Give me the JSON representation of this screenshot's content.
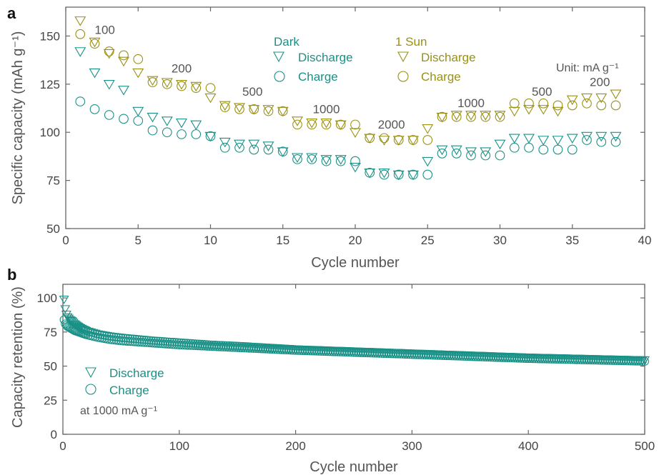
{
  "colors": {
    "dark": "#1a9187",
    "sun": "#9a9112",
    "axis": "#666666",
    "text": "#555555"
  },
  "chart_data": [
    {
      "panel": "a",
      "type": "scatter",
      "xlabel": "Cycle number",
      "ylabel": "Specific capacity (mAh g⁻¹)",
      "xlim": [
        0,
        40
      ],
      "ylim": [
        50,
        165
      ],
      "xticks": [
        0,
        5,
        10,
        15,
        20,
        25,
        30,
        35,
        40
      ],
      "yticks": [
        50,
        75,
        100,
        125,
        150
      ],
      "grid": false,
      "unit_note": "Unit: mA g⁻¹",
      "legend": {
        "groups": [
          {
            "title": "Dark",
            "entries": [
              "Discharge",
              "Charge"
            ]
          },
          {
            "title": "1 Sun",
            "entries": [
              "Discharge",
              "Charge"
            ]
          }
        ]
      },
      "rate_labels": [
        {
          "text": "100",
          "x": 2.7,
          "y": 151
        },
        {
          "text": "200",
          "x": 8.0,
          "y": 131
        },
        {
          "text": "500",
          "x": 12.9,
          "y": 119
        },
        {
          "text": "1000",
          "x": 18.0,
          "y": 110
        },
        {
          "text": "2000",
          "x": 22.5,
          "y": 102
        },
        {
          "text": "1000",
          "x": 28.0,
          "y": 113
        },
        {
          "text": "500",
          "x": 32.9,
          "y": 119
        },
        {
          "text": "200",
          "x": 36.9,
          "y": 124
        }
      ],
      "x": [
        1,
        2,
        3,
        4,
        5,
        6,
        7,
        8,
        9,
        10,
        11,
        12,
        13,
        14,
        15,
        16,
        17,
        18,
        19,
        20,
        21,
        22,
        23,
        24,
        25,
        26,
        27,
        28,
        29,
        30,
        31,
        32,
        33,
        34,
        35,
        36,
        37,
        38
      ],
      "series": [
        {
          "name": "Discharge",
          "group": "1 Sun",
          "marker": "triangle-down",
          "color": "#9a9112",
          "values": [
            158,
            147,
            141,
            137,
            131,
            127,
            126,
            125,
            124,
            118,
            114,
            113,
            112,
            112,
            111,
            106,
            105,
            105,
            104,
            100,
            97,
            96,
            96,
            96,
            102,
            108,
            109,
            109,
            109,
            109,
            111,
            112,
            112,
            111,
            117,
            118,
            118,
            120
          ]
        },
        {
          "name": "Charge",
          "group": "1 Sun",
          "marker": "circle",
          "color": "#9a9112",
          "values": [
            151,
            146,
            142,
            140,
            138,
            126,
            125,
            124,
            123,
            123,
            113,
            112,
            112,
            111,
            111,
            104,
            104,
            104,
            104,
            104,
            97,
            97,
            96,
            96,
            96,
            108,
            108,
            108,
            108,
            108,
            115,
            115,
            115,
            114,
            114,
            115,
            114,
            114
          ]
        },
        {
          "name": "Discharge",
          "group": "Dark",
          "marker": "triangle-down",
          "color": "#1a9187",
          "values": [
            142,
            131,
            125,
            122,
            111,
            108,
            106,
            105,
            104,
            98,
            95,
            94,
            94,
            93,
            90,
            87,
            87,
            86,
            86,
            82,
            79,
            79,
            78,
            78,
            85,
            91,
            91,
            90,
            90,
            94,
            97,
            97,
            96,
            96,
            97,
            98,
            98,
            98
          ]
        },
        {
          "name": "Charge",
          "group": "Dark",
          "marker": "circle",
          "color": "#1a9187",
          "values": [
            116,
            112,
            109,
            107,
            106,
            101,
            100,
            99,
            99,
            98,
            92,
            92,
            91,
            91,
            90,
            86,
            86,
            85,
            85,
            85,
            79,
            78,
            78,
            78,
            78,
            89,
            89,
            88,
            88,
            88,
            92,
            92,
            91,
            91,
            91,
            96,
            95,
            95
          ]
        }
      ]
    },
    {
      "panel": "b",
      "type": "scatter",
      "xlabel": "Cycle number",
      "ylabel": "Capacity retention (%)",
      "xlim": [
        0,
        500
      ],
      "ylim": [
        0,
        110
      ],
      "xticks": [
        0,
        100,
        200,
        300,
        400,
        500
      ],
      "yticks": [
        0,
        25,
        50,
        75,
        100
      ],
      "grid": false,
      "rate_note": "at 1000 mA g⁻¹",
      "legend": {
        "entries": [
          "Discharge",
          "Charge"
        ]
      },
      "series": [
        {
          "name": "Discharge",
          "marker": "triangle-down",
          "color": "#1a9187",
          "points": [
            [
              1,
              99
            ],
            [
              2,
              92
            ],
            [
              3,
              88
            ],
            [
              4,
              86
            ],
            [
              5,
              85
            ],
            [
              6,
              84
            ],
            [
              8,
              83
            ],
            [
              10,
              81
            ],
            [
              15,
              78
            ],
            [
              20,
              76
            ],
            [
              30,
              73.5
            ],
            [
              40,
              72
            ],
            [
              50,
              71
            ],
            [
              75,
              69
            ],
            [
              100,
              67.5
            ],
            [
              125,
              66
            ],
            [
              150,
              65
            ],
            [
              200,
              62.5
            ],
            [
              250,
              61
            ],
            [
              300,
              59.5
            ],
            [
              350,
              58
            ],
            [
              400,
              56.5
            ],
            [
              450,
              55.5
            ],
            [
              500,
              54.5
            ]
          ]
        },
        {
          "name": "Charge",
          "group": "",
          "marker": "circle",
          "color": "#1a9187",
          "points": [
            [
              1,
              84
            ],
            [
              2,
              81
            ],
            [
              3,
              80
            ],
            [
              4,
              79
            ],
            [
              5,
              78.5
            ],
            [
              6,
              78
            ],
            [
              8,
              77
            ],
            [
              10,
              76
            ],
            [
              15,
              74.5
            ],
            [
              20,
              73
            ],
            [
              30,
              71
            ],
            [
              40,
              69.5
            ],
            [
              50,
              68.5
            ],
            [
              75,
              67
            ],
            [
              100,
              65.5
            ],
            [
              125,
              64.5
            ],
            [
              150,
              63.5
            ],
            [
              200,
              61.5
            ],
            [
              250,
              60
            ],
            [
              300,
              58.5
            ],
            [
              350,
              57
            ],
            [
              400,
              55.5
            ],
            [
              450,
              54.5
            ],
            [
              500,
              53.5
            ]
          ]
        }
      ]
    }
  ]
}
